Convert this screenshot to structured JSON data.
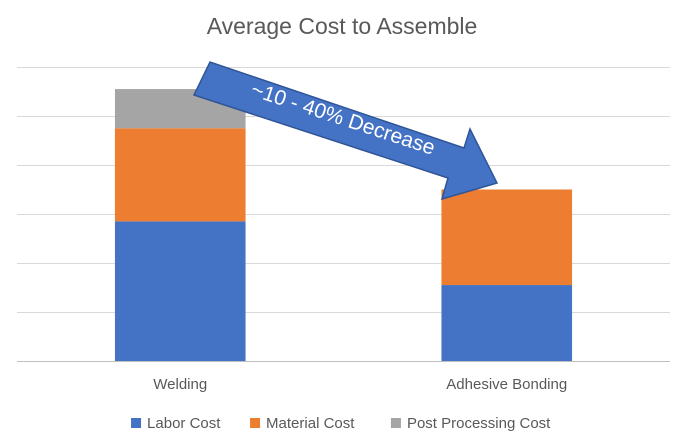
{
  "chart_data": {
    "type": "bar",
    "stacked": true,
    "title": "Average Cost to Assemble",
    "xlabel": "",
    "ylabel": "",
    "categories": [
      "Welding",
      "Adhesive Bonding"
    ],
    "series": [
      {
        "name": "Labor Cost",
        "color": "#4472C4",
        "values": [
          2.85,
          1.55
        ]
      },
      {
        "name": "Material Cost",
        "color": "#ED7D31",
        "values": [
          1.9,
          1.95
        ]
      },
      {
        "name": "Post Processing Cost",
        "color": "#A5A5A5",
        "values": [
          0.8,
          0
        ]
      }
    ],
    "ylim": [
      0,
      6
    ],
    "y_gridlines": [
      0,
      1,
      2,
      3,
      4,
      5,
      6
    ],
    "grid": true,
    "y_tick_labels_shown": false,
    "legend_position": "bottom",
    "annotation": {
      "text": "~10 - 40% Decrease",
      "shape": "arrow",
      "color": "#4472C4"
    }
  }
}
